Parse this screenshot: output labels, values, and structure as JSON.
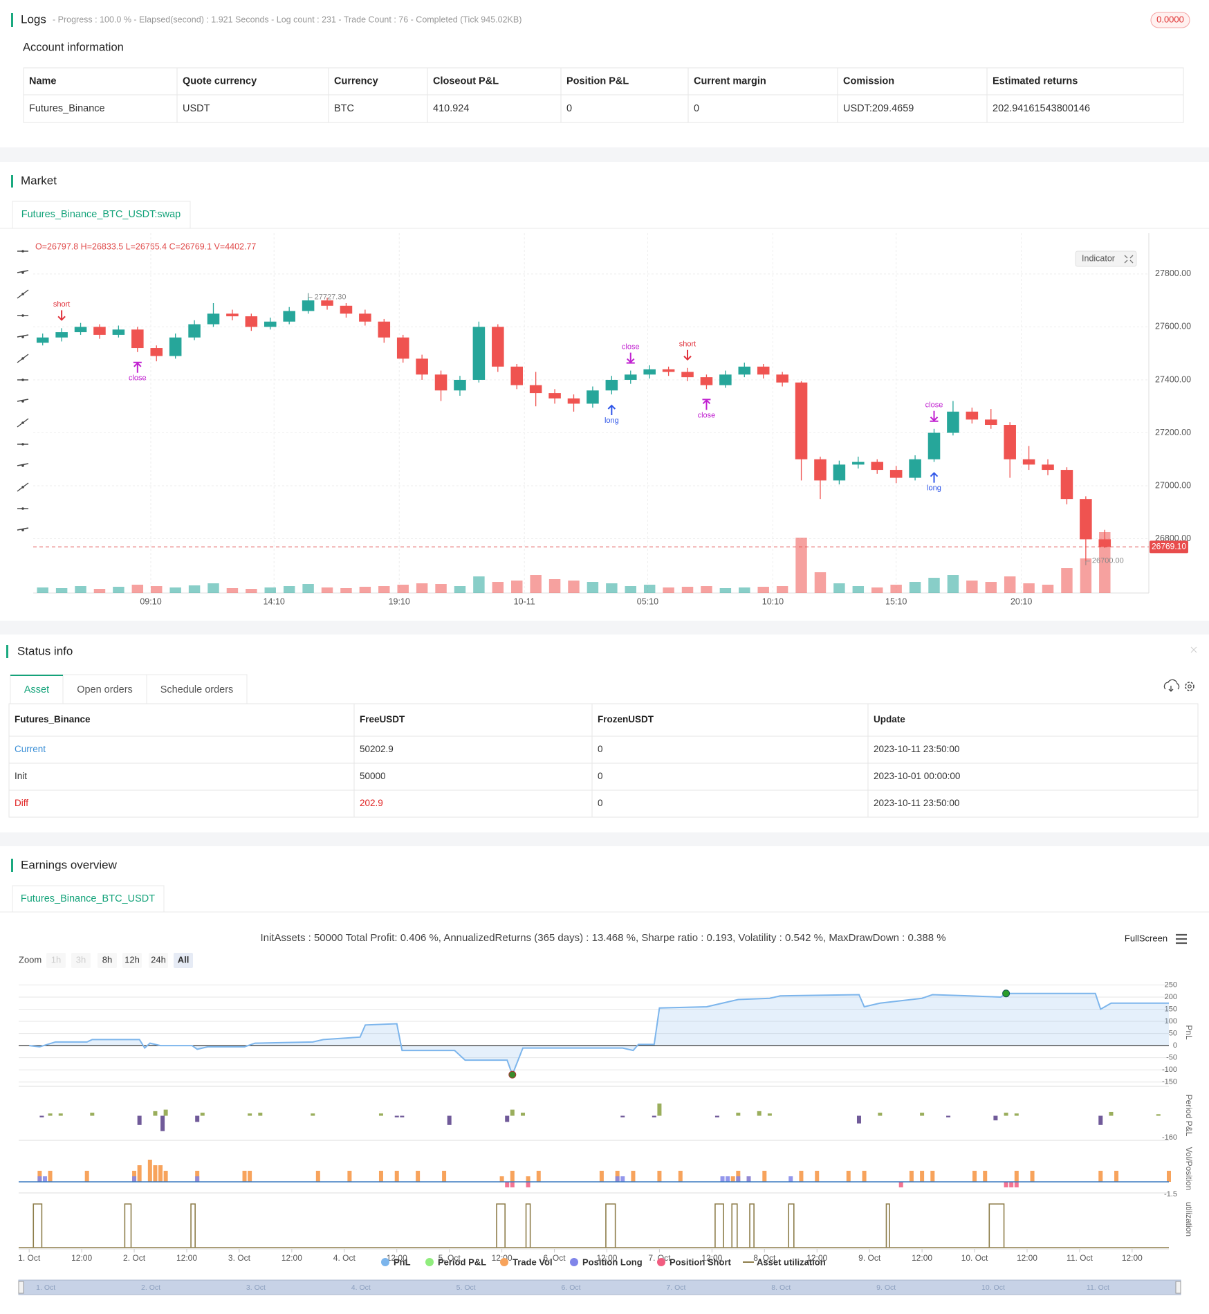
{
  "logs": {
    "title": "Logs",
    "summary": "- Progress : 100.0 % - Elapsed(second) : 1.921  Seconds - Log count : 231 - Trade Count : 76 - Completed (Tick 945.02KB)",
    "badge": "0.0000"
  },
  "account": {
    "title": "Account information",
    "columns": [
      "Name",
      "Quote currency",
      "Currency",
      "Closeout P&L",
      "Position P&L",
      "Current margin",
      "Comission",
      "Estimated returns"
    ],
    "rows": [
      [
        "Futures_Binance",
        "USDT",
        "BTC",
        "410.924",
        "0",
        "0",
        "USDT:209.4659",
        "202.94161543800146"
      ]
    ]
  },
  "market": {
    "title": "Market",
    "tab": "Futures_Binance_BTC_USDT:swap",
    "indicator": "Indicator",
    "chart_data": {
      "type": "candlestick",
      "ohlc_label": "O=26797.8 H=26833.5 L=26765.4 C=26769.1 V=4402.77",
      "up_color": "#26a69a",
      "down_color": "#ef5350",
      "candles": [
        [
          27540,
          27575,
          27530,
          27560
        ],
        [
          27560,
          27595,
          27545,
          27580
        ],
        [
          27580,
          27615,
          27570,
          27600
        ],
        [
          27600,
          27610,
          27555,
          27570
        ],
        [
          27570,
          27605,
          27560,
          27590
        ],
        [
          27590,
          27600,
          27505,
          27520
        ],
        [
          27520,
          27530,
          27470,
          27490
        ],
        [
          27490,
          27575,
          27480,
          27560
        ],
        [
          27560,
          27625,
          27550,
          27610
        ],
        [
          27610,
          27690,
          27600,
          27650
        ],
        [
          27650,
          27665,
          27625,
          27640
        ],
        [
          27640,
          27650,
          27585,
          27600
        ],
        [
          27600,
          27635,
          27590,
          27620
        ],
        [
          27620,
          27675,
          27610,
          27660
        ],
        [
          27660,
          27727.3,
          27650,
          27700
        ],
        [
          27700,
          27710,
          27665,
          27680
        ],
        [
          27680,
          27690,
          27635,
          27650
        ],
        [
          27650,
          27665,
          27605,
          27620
        ],
        [
          27620,
          27630,
          27540,
          27560
        ],
        [
          27560,
          27570,
          27465,
          27480
        ],
        [
          27480,
          27495,
          27400,
          27420
        ],
        [
          27420,
          27435,
          27320,
          27360
        ],
        [
          27360,
          27415,
          27340,
          27400
        ],
        [
          27400,
          27620,
          27390,
          27600
        ],
        [
          27600,
          27610,
          27430,
          27450
        ],
        [
          27450,
          27460,
          27365,
          27380
        ],
        [
          27380,
          27430,
          27300,
          27350
        ],
        [
          27350,
          27365,
          27310,
          27330
        ],
        [
          27330,
          27345,
          27280,
          27310
        ],
        [
          27310,
          27375,
          27295,
          27360
        ],
        [
          27360,
          27415,
          27345,
          27400
        ],
        [
          27400,
          27435,
          27385,
          27420
        ],
        [
          27420,
          27455,
          27405,
          27440
        ],
        [
          27440,
          27450,
          27415,
          27430
        ],
        [
          27430,
          27445,
          27395,
          27410
        ],
        [
          27410,
          27420,
          27365,
          27380
        ],
        [
          27380,
          27435,
          27370,
          27420
        ],
        [
          27420,
          27465,
          27410,
          27450
        ],
        [
          27450,
          27460,
          27405,
          27420
        ],
        [
          27420,
          27430,
          27375,
          27390
        ],
        [
          27390,
          27395,
          27020,
          27100
        ],
        [
          27100,
          27110,
          26950,
          27020
        ],
        [
          27020,
          27095,
          27005,
          27080
        ],
        [
          27080,
          27110,
          27065,
          27090
        ],
        [
          27090,
          27100,
          27045,
          27060
        ],
        [
          27060,
          27075,
          27010,
          27030
        ],
        [
          27030,
          27115,
          27020,
          27100
        ],
        [
          27100,
          27215,
          27090,
          27200
        ],
        [
          27200,
          27320,
          27190,
          27280
        ],
        [
          27280,
          27295,
          27235,
          27250
        ],
        [
          27250,
          27290,
          27215,
          27230
        ],
        [
          27230,
          27240,
          27030,
          27100
        ],
        [
          27100,
          27150,
          27060,
          27080
        ],
        [
          27080,
          27100,
          27040,
          27060
        ],
        [
          27060,
          27070,
          26930,
          26950
        ],
        [
          26950,
          26960,
          26700,
          26797.8
        ],
        [
          26797.8,
          26833.5,
          26765.4,
          26769.1
        ]
      ],
      "volumes": [
        400,
        350,
        500,
        300,
        450,
        600,
        500,
        400,
        550,
        700,
        350,
        300,
        400,
        500,
        650,
        400,
        350,
        450,
        500,
        600,
        700,
        650,
        500,
        1200,
        800,
        900,
        1300,
        1000,
        900,
        800,
        700,
        500,
        600,
        400,
        450,
        500,
        350,
        400,
        450,
        500,
        4000,
        1500,
        700,
        500,
        400,
        600,
        800,
        1100,
        1300,
        900,
        800,
        1200,
        700,
        600,
        1800,
        2500,
        4402.77
      ],
      "ylim": [
        26595,
        27933
      ],
      "yticks": [
        {
          "value": 26800,
          "label": "26800.00"
        },
        {
          "value": 27000,
          "label": "27000.00"
        },
        {
          "value": 27200,
          "label": "27200.00"
        },
        {
          "value": 27400,
          "label": "27400.00"
        },
        {
          "value": 27600,
          "label": "27600.00"
        },
        {
          "value": 27800,
          "label": "27800.00"
        }
      ],
      "xticks": [
        {
          "value": 5.7,
          "label": "09:10"
        },
        {
          "value": 12.2,
          "label": "14:10"
        },
        {
          "value": 18.8,
          "label": "19:10"
        },
        {
          "value": 25.4,
          "label": "10-11"
        },
        {
          "value": 31.9,
          "label": "05:10"
        },
        {
          "value": 38.5,
          "label": "10:10"
        },
        {
          "value": 45,
          "label": "15:10"
        },
        {
          "value": 51.6,
          "label": "20:10"
        }
      ],
      "grid": true,
      "last_price": {
        "value": 26769.1,
        "label": "26769.10"
      },
      "high_label": {
        "index": 14,
        "value": 27727.3,
        "label": "27727.30"
      },
      "low_label": {
        "index": 55,
        "value": 26700,
        "label": "26700.00"
      },
      "annotations": [
        {
          "text": "short",
          "index": 1,
          "position": "above"
        },
        {
          "text": "close",
          "index": 5,
          "position": "below"
        },
        {
          "text": "long",
          "index": 30,
          "position": "below"
        },
        {
          "text": "close",
          "index": 31,
          "position": "above"
        },
        {
          "text": "short",
          "index": 34,
          "position": "above"
        },
        {
          "text": "close",
          "index": 35,
          "position": "below"
        },
        {
          "text": "close",
          "index": 47,
          "position": "above"
        },
        {
          "text": "long",
          "index": 47,
          "position": "below"
        }
      ]
    }
  },
  "status": {
    "title": "Status info",
    "tabs": [
      "Asset",
      "Open orders",
      "Schedule orders"
    ],
    "columns": [
      "Futures_Binance",
      "FreeUSDT",
      "FrozenUSDT",
      "Update"
    ],
    "rows": [
      [
        "Current",
        "50202.9",
        "0",
        "2023-10-11 23:50:00"
      ],
      [
        "Init",
        "50000",
        "0",
        "2023-10-01 00:00:00"
      ],
      [
        "Diff",
        "202.9",
        "0",
        "2023-10-11 23:50:00"
      ]
    ]
  },
  "earnings": {
    "title": "Earnings overview",
    "tab": "Futures_Binance_BTC_USDT",
    "fullscreen": "FullScreen",
    "zoom": "Zoom",
    "zoom_buttons": [
      "1h",
      "3h",
      "8h",
      "12h",
      "24h",
      "All"
    ],
    "chart_data": {
      "type": "line",
      "title": "InitAssets : 50000 Total Profit: 0.406 %, AnnualizedReturns (365 days) : 13.468 %, Sharpe ratio : 0.193, Volatility : 0.542 %, MaxDrawDown : 0.388 %",
      "xlim": [
        -0.1,
        10.85
      ],
      "xticks": [
        {
          "value": 0,
          "label": "1. Oct"
        },
        {
          "value": 0.5,
          "label": "12:00"
        },
        {
          "value": 1,
          "label": "2. Oct"
        },
        {
          "value": 1.5,
          "label": "12:00"
        },
        {
          "value": 2,
          "label": "3. Oct"
        },
        {
          "value": 2.5,
          "label": "12:00"
        },
        {
          "value": 3,
          "label": "4. Oct"
        },
        {
          "value": 3.5,
          "label": "12:00"
        },
        {
          "value": 4,
          "label": "5. Oct"
        },
        {
          "value": 4.5,
          "label": "12:00"
        },
        {
          "value": 5,
          "label": "6. Oct"
        },
        {
          "value": 5.5,
          "label": "12:00"
        },
        {
          "value": 6,
          "label": "7. Oct"
        },
        {
          "value": 6.5,
          "label": "12:00"
        },
        {
          "value": 7,
          "label": "8. Oct"
        },
        {
          "value": 7.5,
          "label": "12:00"
        },
        {
          "value": 8,
          "label": "9. Oct"
        },
        {
          "value": 8.5,
          "label": "12:00"
        },
        {
          "value": 9,
          "label": "10. Oct"
        },
        {
          "value": 9.5,
          "label": "12:00"
        },
        {
          "value": 10,
          "label": "11. Oct"
        },
        {
          "value": 10.5,
          "label": "12:00"
        }
      ],
      "pnl_axis": {
        "label": "PnL",
        "ylim": [
          -168,
          277
        ],
        "yticks": [
          -150,
          -100,
          -50,
          0,
          50,
          100,
          150,
          200,
          250
        ]
      },
      "period_axis": {
        "label": "Period P&L",
        "ylim": [
          -160,
          160
        ],
        "yticks": [
          -160
        ]
      },
      "vol_axis": {
        "label": "Vol/Position",
        "ylim": [
          -2,
          6.75
        ],
        "yticks": [
          -1.5
        ]
      },
      "util_axis": {
        "label": "utilization"
      },
      "series": [
        {
          "name": "PnL",
          "color": "#7cb5ec",
          "x": [
            0,
            0.1,
            0.25,
            0.55,
            0.6,
            1.05,
            1.1,
            1.15,
            1.25,
            1.3,
            1.55,
            1.6,
            1.7,
            2.05,
            2.15,
            2.7,
            2.8,
            3.15,
            3.2,
            3.5,
            3.55,
            4.05,
            4.15,
            4.55,
            4.6,
            4.7,
            5.65,
            5.75,
            5.8,
            5.95,
            6.0,
            6.45,
            6.55,
            6.75,
            7.05,
            7.15,
            7.9,
            7.95,
            8.1,
            8.3,
            8.5,
            8.6,
            8.95,
            9.25,
            9.3,
            10.15,
            10.2,
            10.3,
            10.85
          ],
          "values": [
            0,
            -5,
            15,
            15,
            25,
            25,
            -10,
            10,
            0,
            0,
            0,
            -15,
            -5,
            -5,
            10,
            15,
            25,
            35,
            85,
            90,
            -20,
            -20,
            -60,
            -60,
            -120,
            -10,
            -10,
            -20,
            5,
            5,
            155,
            160,
            170,
            190,
            195,
            205,
            210,
            160,
            175,
            185,
            195,
            210,
            205,
            200,
            215,
            215,
            150,
            175,
            175
          ]
        },
        {
          "name": "Period P&L",
          "color": "#90ed7d",
          "positive_color": "#9aae5c",
          "negative_color": "#705a99",
          "x": [
            0.12,
            0.2,
            0.3,
            0.6,
            1.05,
            1.2,
            1.27,
            1.3,
            1.6,
            1.65,
            2.1,
            2.2,
            2.7,
            3.35,
            3.5,
            3.55,
            4.0,
            4.55,
            4.6,
            4.7,
            5.65,
            5.95,
            6.0,
            6.55,
            6.75,
            6.95,
            7.05,
            7.9,
            8.1,
            8.5,
            8.75,
            9.2,
            9.3,
            9.4,
            10.2,
            10.3,
            10.75
          ],
          "values": [
            -10,
            15,
            15,
            20,
            -60,
            30,
            -100,
            40,
            -40,
            20,
            15,
            20,
            15,
            15,
            -10,
            -10,
            -60,
            -40,
            40,
            20,
            -10,
            -10,
            80,
            -10,
            20,
            30,
            15,
            -50,
            20,
            20,
            -10,
            -30,
            20,
            15,
            -60,
            25,
            10
          ]
        },
        {
          "name": "Trade Vol",
          "color": "#f7a35c",
          "x": [
            0.1,
            0.2,
            0.55,
            1.0,
            1.05,
            1.15,
            1.2,
            1.25,
            1.3,
            1.6,
            2.05,
            2.1,
            2.75,
            3.05,
            3.35,
            3.5,
            3.7,
            3.95,
            4.5,
            4.6,
            4.75,
            4.85,
            5.45,
            5.6,
            5.75,
            6.0,
            6.2,
            6.7,
            6.75,
            6.85,
            7.0,
            7.35,
            7.5,
            7.8,
            7.95,
            8.4,
            8.5,
            8.6,
            9.0,
            9.1,
            9.4,
            9.55,
            10.2,
            10.35,
            10.85
          ],
          "values": [
            2,
            2,
            2,
            2,
            3,
            4,
            3,
            3,
            2,
            2,
            2,
            2,
            2,
            2,
            2,
            2,
            2,
            2,
            1,
            2,
            1,
            2,
            2,
            2,
            2,
            2,
            2,
            1,
            2,
            1,
            2,
            2,
            2,
            2,
            2,
            2,
            2,
            2,
            2,
            2,
            2,
            2,
            2,
            2,
            2
          ]
        },
        {
          "name": "Position Long",
          "color": "#8085e9",
          "x": [
            0.1,
            0.15,
            1.0,
            1.6,
            5.6,
            5.65,
            6.6,
            6.65,
            6.75,
            6.85,
            7.25
          ],
          "values": [
            1,
            1,
            1,
            1,
            1,
            1,
            1,
            1,
            1,
            1,
            1
          ]
        },
        {
          "name": "Position Short",
          "color": "#f15c80",
          "x": [
            4.55,
            4.6,
            4.75,
            8.3,
            9.3,
            9.35,
            9.4
          ],
          "values": [
            -1,
            -1,
            -1,
            -1,
            -1,
            -1,
            -1
          ]
        },
        {
          "name": "Asset utilization",
          "color": "#8d7d4a",
          "spans": [
            [
              0.04,
              0.12
            ],
            [
              0.91,
              0.97
            ],
            [
              1.54,
              1.58
            ],
            [
              4.45,
              4.53
            ],
            [
              4.73,
              4.77
            ],
            [
              5.49,
              5.58
            ],
            [
              6.53,
              6.61
            ],
            [
              6.69,
              6.74
            ],
            [
              6.86,
              6.9
            ],
            [
              7.23,
              7.28
            ],
            [
              8.16,
              8.19
            ],
            [
              9.14,
              9.28
            ]
          ]
        }
      ]
    }
  }
}
